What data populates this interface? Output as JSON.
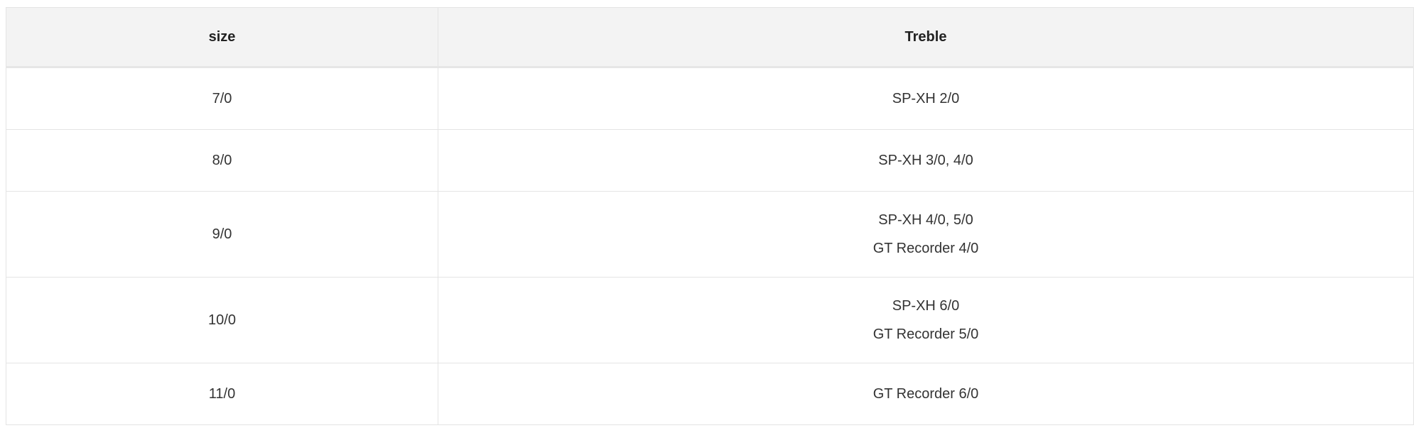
{
  "table": {
    "headers": [
      "size",
      "Treble"
    ],
    "rows": [
      {
        "size": "7/0",
        "treble": [
          "SP-XH 2/0"
        ]
      },
      {
        "size": "8/0",
        "treble": [
          "SP-XH 3/0, 4/0"
        ]
      },
      {
        "size": "9/0",
        "treble": [
          "SP-XH 4/0, 5/0",
          "GT Recorder 4/0"
        ]
      },
      {
        "size": "10/0",
        "treble": [
          "SP-XH 6/0",
          "GT Recorder 5/0"
        ]
      },
      {
        "size": "11/0",
        "treble": [
          "GT Recorder 6/0"
        ]
      }
    ]
  }
}
